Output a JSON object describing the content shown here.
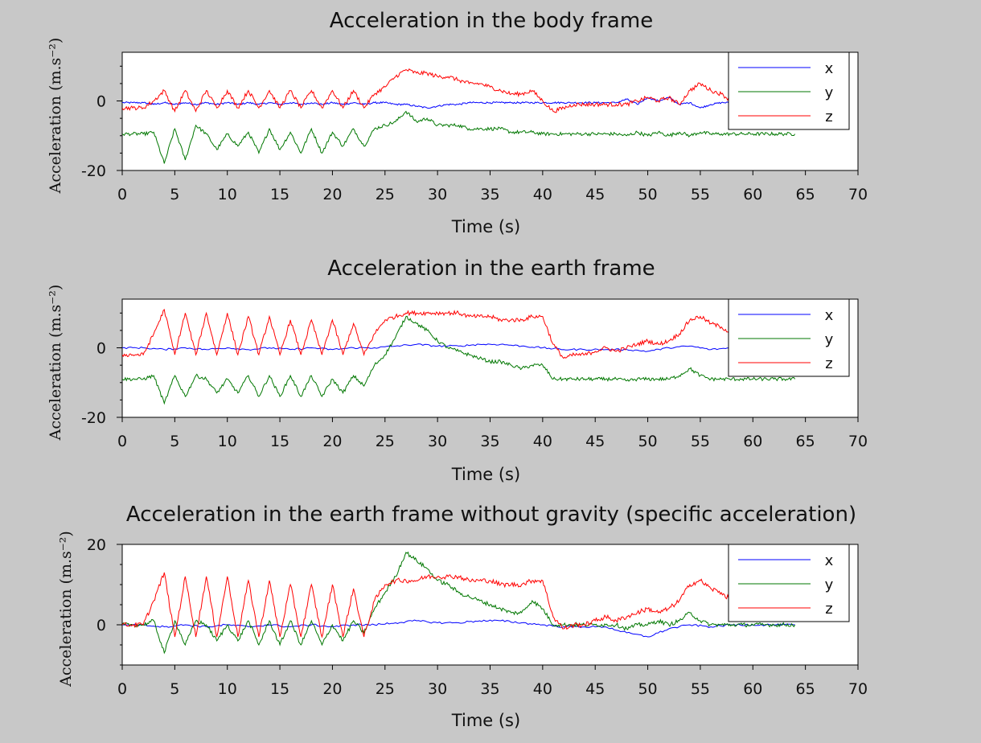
{
  "chart_data": [
    {
      "type": "line",
      "title": "Acceleration in the body frame",
      "xlabel": "Time (s)",
      "ylabel": "Acceleration (m.s⁻²)",
      "xlim": [
        0,
        70
      ],
      "ylim": [
        -20,
        14
      ],
      "xticks": [
        0,
        5,
        10,
        15,
        20,
        25,
        30,
        35,
        40,
        45,
        50,
        55,
        60,
        65,
        70
      ],
      "yticks": [
        -20,
        0
      ],
      "legend": "top-right",
      "series": [
        {
          "name": "x",
          "color": "#0000ff",
          "x": [
            0,
            1,
            2,
            3,
            4,
            5,
            6,
            7,
            8,
            9,
            10,
            11,
            12,
            13,
            14,
            15,
            16,
            17,
            18,
            19,
            20,
            21,
            22,
            23,
            24,
            25,
            26,
            27,
            28,
            29,
            30,
            31,
            32,
            33,
            34,
            35,
            36,
            37,
            38,
            39,
            40,
            41,
            42,
            43,
            44,
            45,
            46,
            47,
            48,
            49,
            50,
            51,
            52,
            53,
            54,
            55,
            56,
            57,
            58,
            59,
            60,
            61,
            62,
            63,
            64
          ],
          "y": [
            -0.5,
            -0.5,
            -0.5,
            -1,
            -0.5,
            -1,
            -0.5,
            -1,
            -0.5,
            -1,
            -0.5,
            -1,
            -0.5,
            -1,
            -0.5,
            -1,
            -0.5,
            -1,
            -0.5,
            -1,
            -0.5,
            -1,
            -0.5,
            -1,
            -0.5,
            -0.5,
            -1,
            -1,
            -1.5,
            -2,
            -1.5,
            -1,
            -1,
            -0.5,
            -0.5,
            -0.5,
            -0.5,
            -0.5,
            -0.5,
            -0.5,
            -0.5,
            -0.5,
            -0.5,
            -0.5,
            -0.5,
            -0.5,
            -0.5,
            -0.5,
            0.5,
            -1,
            1,
            0,
            1,
            -1,
            -0.5,
            -2,
            -1,
            -0.5,
            -0.5,
            -0.5,
            -0.5,
            -0.5,
            -0.5,
            -0.5,
            -0.5
          ]
        },
        {
          "name": "y",
          "color": "#007700",
          "x": [
            0,
            1,
            2,
            3,
            4,
            5,
            6,
            7,
            8,
            9,
            10,
            11,
            12,
            13,
            14,
            15,
            16,
            17,
            18,
            19,
            20,
            21,
            22,
            23,
            24,
            25,
            26,
            27,
            28,
            29,
            30,
            31,
            32,
            33,
            34,
            35,
            36,
            37,
            38,
            39,
            40,
            41,
            42,
            43,
            44,
            45,
            46,
            47,
            48,
            49,
            50,
            51,
            52,
            53,
            54,
            55,
            56,
            57,
            58,
            59,
            60,
            61,
            62,
            63,
            64
          ],
          "y": [
            -9.5,
            -9.5,
            -9.5,
            -9,
            -18,
            -8,
            -17,
            -7,
            -9.5,
            -14,
            -9.5,
            -13,
            -9,
            -15,
            -8,
            -14,
            -9,
            -15,
            -8,
            -15,
            -9,
            -13,
            -8,
            -13,
            -8,
            -7,
            -6,
            -3,
            -6,
            -5,
            -7,
            -7,
            -7,
            -8,
            -8,
            -8,
            -8,
            -9,
            -9,
            -9,
            -9.5,
            -9.5,
            -9.5,
            -9.5,
            -9.5,
            -9.5,
            -9.5,
            -9.5,
            -10,
            -9,
            -10,
            -9,
            -10,
            -9,
            -10,
            -9,
            -9.5,
            -9.5,
            -9.5,
            -9.5,
            -9.5,
            -9.5,
            -9.5,
            -9.5,
            -9.5
          ]
        },
        {
          "name": "z",
          "color": "#ff0000",
          "x": [
            0,
            1,
            2,
            3,
            4,
            5,
            6,
            7,
            8,
            9,
            10,
            11,
            12,
            13,
            14,
            15,
            16,
            17,
            18,
            19,
            20,
            21,
            22,
            23,
            24,
            25,
            26,
            27,
            28,
            29,
            30,
            31,
            32,
            33,
            34,
            35,
            36,
            37,
            38,
            39,
            40,
            41,
            42,
            43,
            44,
            45,
            46,
            47,
            48,
            49,
            50,
            51,
            52,
            53,
            54,
            55,
            56,
            57,
            58,
            59,
            60,
            61,
            62,
            63,
            64
          ],
          "y": [
            -2,
            -2,
            -2,
            0,
            3,
            -3,
            3,
            -3,
            3,
            -2,
            3,
            -2,
            3,
            -2,
            3,
            -2,
            3,
            -2,
            3,
            -2,
            3,
            -2,
            3,
            -2,
            2,
            4,
            7,
            9,
            8,
            8,
            7,
            7,
            6,
            5,
            5,
            4,
            3,
            2,
            2,
            3,
            0,
            -3,
            -2,
            -1,
            -1,
            -1,
            -1,
            -1,
            -1,
            0,
            1,
            0,
            1,
            -1,
            3,
            5,
            3,
            2,
            0,
            0,
            0,
            0,
            0,
            0,
            0
          ]
        }
      ]
    },
    {
      "type": "line",
      "title": "Acceleration in the earth frame",
      "xlabel": "Time (s)",
      "ylabel": "Acceleration (m.s⁻²)",
      "xlim": [
        0,
        70
      ],
      "ylim": [
        -20,
        14
      ],
      "xticks": [
        0,
        5,
        10,
        15,
        20,
        25,
        30,
        35,
        40,
        45,
        50,
        55,
        60,
        65,
        70
      ],
      "yticks": [
        -20,
        0
      ],
      "legend": "top-right",
      "series": [
        {
          "name": "x",
          "color": "#0000ff",
          "x": [
            0,
            2,
            4,
            6,
            8,
            10,
            12,
            14,
            16,
            18,
            20,
            22,
            24,
            26,
            28,
            30,
            32,
            34,
            36,
            38,
            40,
            42,
            44,
            46,
            48,
            50,
            52,
            54,
            56,
            58,
            60,
            62,
            64
          ],
          "y": [
            0,
            0,
            -0.5,
            0,
            -0.5,
            0,
            -0.5,
            0,
            -0.5,
            0,
            -0.5,
            0,
            0,
            0.5,
            1,
            0.5,
            0.5,
            1,
            1,
            0.5,
            0,
            -0.5,
            -0.5,
            -0.5,
            -0.5,
            -1,
            0,
            0.5,
            -0.5,
            0,
            0,
            0,
            0
          ]
        },
        {
          "name": "y",
          "color": "#007700",
          "x": [
            0,
            1,
            2,
            3,
            4,
            5,
            6,
            7,
            8,
            9,
            10,
            11,
            12,
            13,
            14,
            15,
            16,
            17,
            18,
            19,
            20,
            21,
            22,
            23,
            24,
            25,
            26,
            27,
            28,
            29,
            30,
            31,
            32,
            33,
            34,
            35,
            36,
            37,
            38,
            39,
            40,
            41,
            42,
            43,
            44,
            45,
            46,
            47,
            48,
            49,
            50,
            51,
            52,
            53,
            54,
            55,
            56,
            57,
            58,
            59,
            60,
            61,
            62,
            63,
            64
          ],
          "y": [
            -9,
            -9,
            -9,
            -8,
            -16,
            -8,
            -14,
            -8,
            -9,
            -13,
            -9,
            -13,
            -8,
            -14,
            -8,
            -14,
            -8,
            -14,
            -8,
            -14,
            -9,
            -13,
            -8,
            -11,
            -5,
            -2,
            3,
            9,
            7,
            5,
            2,
            0,
            -1,
            -2,
            -3,
            -4,
            -4,
            -5,
            -6,
            -5,
            -5,
            -9,
            -9,
            -9,
            -9,
            -9,
            -9,
            -9,
            -9.5,
            -9,
            -9,
            -9,
            -9,
            -8,
            -6,
            -8,
            -9,
            -9,
            -9,
            -9,
            -9,
            -9,
            -9,
            -9,
            -9
          ]
        },
        {
          "name": "z",
          "color": "#ff0000",
          "x": [
            0,
            1,
            2,
            3,
            4,
            5,
            6,
            7,
            8,
            9,
            10,
            11,
            12,
            13,
            14,
            15,
            16,
            17,
            18,
            19,
            20,
            21,
            22,
            23,
            24,
            25,
            26,
            27,
            28,
            29,
            30,
            31,
            32,
            33,
            34,
            35,
            36,
            37,
            38,
            39,
            40,
            41,
            42,
            43,
            44,
            45,
            46,
            47,
            48,
            49,
            50,
            51,
            52,
            53,
            54,
            55,
            56,
            57,
            58,
            59,
            60,
            61,
            62,
            63,
            64
          ],
          "y": [
            -2,
            -2,
            -2,
            4,
            11,
            -2,
            10,
            -2,
            10,
            -2,
            10,
            -2,
            9,
            -2,
            9,
            -2,
            8,
            -2,
            8,
            -2,
            8,
            -2,
            7,
            -2,
            4,
            8,
            9,
            10,
            10,
            10,
            10,
            10,
            10,
            9,
            9,
            9,
            8,
            8,
            8,
            9,
            9,
            1,
            -3,
            -2,
            -2,
            -1,
            0,
            -1,
            0,
            1,
            2,
            1,
            2,
            4,
            8,
            9,
            7,
            6,
            4,
            3,
            2,
            2,
            1,
            1,
            1
          ]
        }
      ]
    },
    {
      "type": "line",
      "title": "Acceleration in the earth frame without gravity (specific acceleration)",
      "xlabel": "Time (s)",
      "ylabel": "Acceleration (m.s⁻²)",
      "xlim": [
        0,
        70
      ],
      "ylim": [
        -10,
        20
      ],
      "xticks": [
        0,
        5,
        10,
        15,
        20,
        25,
        30,
        35,
        40,
        45,
        50,
        55,
        60,
        65,
        70
      ],
      "yticks": [
        0,
        20
      ],
      "legend": "top-right",
      "series": [
        {
          "name": "x",
          "color": "#0000ff",
          "x": [
            0,
            2,
            4,
            6,
            8,
            10,
            12,
            14,
            16,
            18,
            20,
            22,
            24,
            26,
            28,
            30,
            32,
            34,
            36,
            38,
            40,
            42,
            44,
            46,
            48,
            50,
            52,
            54,
            56,
            58,
            60,
            62,
            64
          ],
          "y": [
            0,
            0,
            -0.5,
            0,
            -0.5,
            0,
            -0.5,
            0,
            -0.5,
            0,
            -0.5,
            0,
            0,
            0.5,
            1,
            0.5,
            0.5,
            1,
            1,
            0.5,
            0,
            -0.5,
            -0.5,
            -0.5,
            -2,
            -3,
            -1,
            0,
            -0.5,
            0,
            0,
            0,
            0
          ]
        },
        {
          "name": "y",
          "color": "#007700",
          "x": [
            0,
            1,
            2,
            3,
            4,
            5,
            6,
            7,
            8,
            9,
            10,
            11,
            12,
            13,
            14,
            15,
            16,
            17,
            18,
            19,
            20,
            21,
            22,
            23,
            24,
            25,
            26,
            27,
            28,
            29,
            30,
            31,
            32,
            33,
            34,
            35,
            36,
            37,
            38,
            39,
            40,
            41,
            42,
            43,
            44,
            45,
            46,
            47,
            48,
            49,
            50,
            51,
            52,
            53,
            54,
            55,
            56,
            57,
            58,
            59,
            60,
            61,
            62,
            63,
            64
          ],
          "y": [
            0,
            0,
            0,
            1,
            -7,
            1,
            -5,
            1,
            0,
            -4,
            0,
            -4,
            1,
            -5,
            1,
            -5,
            1,
            -5,
            1,
            -5,
            0,
            -4,
            1,
            -2,
            4,
            8,
            12,
            18,
            16,
            14,
            11,
            10,
            8,
            7,
            6,
            5,
            4,
            3,
            3,
            6,
            4,
            0,
            0,
            0,
            0,
            0,
            0,
            0,
            -1,
            0,
            0,
            1,
            0,
            1,
            3,
            1,
            0,
            0,
            0,
            0,
            0,
            0,
            0,
            0,
            0
          ]
        },
        {
          "name": "z",
          "color": "#ff0000",
          "x": [
            0,
            1,
            2,
            3,
            4,
            5,
            6,
            7,
            8,
            9,
            10,
            11,
            12,
            13,
            14,
            15,
            16,
            17,
            18,
            19,
            20,
            21,
            22,
            23,
            24,
            25,
            26,
            27,
            28,
            29,
            30,
            31,
            32,
            33,
            34,
            35,
            36,
            37,
            38,
            39,
            40,
            41,
            42,
            43,
            44,
            45,
            46,
            47,
            48,
            49,
            50,
            51,
            52,
            53,
            54,
            55,
            56,
            57,
            58,
            59,
            60,
            61,
            62,
            63,
            64
          ],
          "y": [
            0,
            0,
            0,
            6,
            13,
            -3,
            12,
            -3,
            12,
            -3,
            12,
            -3,
            11,
            -3,
            11,
            -3,
            10,
            -3,
            10,
            -3,
            10,
            -3,
            9,
            -3,
            6,
            10,
            11,
            11,
            11,
            12,
            12,
            12,
            12,
            11,
            11,
            11,
            10,
            10,
            10,
            11,
            11,
            2,
            -1,
            0,
            0,
            1,
            2,
            1,
            2,
            3,
            4,
            3,
            4,
            6,
            10,
            11,
            9,
            8,
            6,
            5,
            4,
            3,
            2,
            2,
            2
          ]
        }
      ]
    }
  ]
}
